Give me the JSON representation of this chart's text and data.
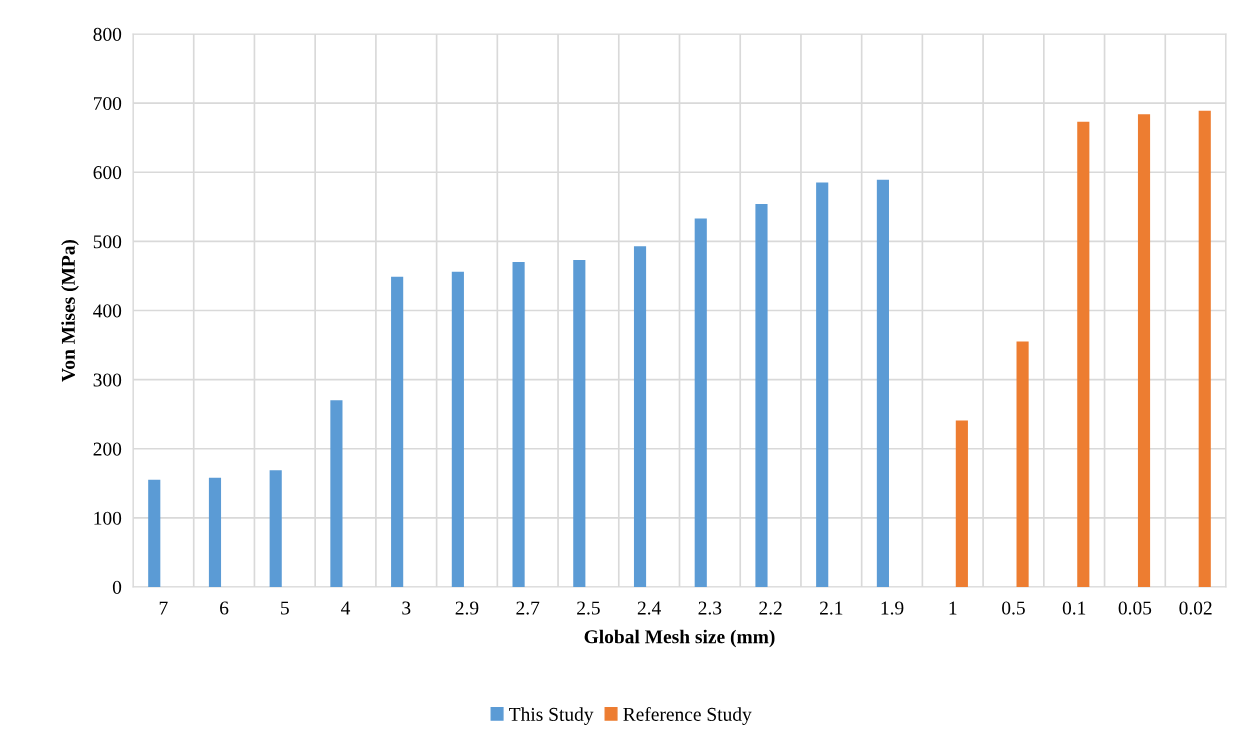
{
  "chart_data": {
    "type": "bar",
    "xlabel": "Global Mesh size (mm)",
    "ylabel": "Von Mises (MPa)",
    "categories": [
      "7",
      "6",
      "5",
      "4",
      "3",
      "2.9",
      "2.7",
      "2.5",
      "2.4",
      "2.3",
      "2.2",
      "2.1",
      "1.9",
      "1",
      "0.5",
      "0.1",
      "0.05",
      "0.02"
    ],
    "series": [
      {
        "name": "This Study",
        "color": "#5b9bd5",
        "values": [
          155,
          158,
          169,
          270,
          449,
          456,
          470,
          473,
          493,
          533,
          554,
          585,
          589,
          null,
          null,
          null,
          null,
          null
        ]
      },
      {
        "name": "Reference Study",
        "color": "#ed7d31",
        "values": [
          null,
          null,
          null,
          null,
          null,
          null,
          null,
          null,
          null,
          null,
          null,
          null,
          null,
          241,
          355,
          673,
          684,
          689
        ]
      }
    ],
    "ylim": [
      0,
      800
    ],
    "yticks": [
      0,
      100,
      200,
      300,
      400,
      500,
      600,
      700,
      800
    ],
    "grid": true,
    "legend": "bottom"
  }
}
